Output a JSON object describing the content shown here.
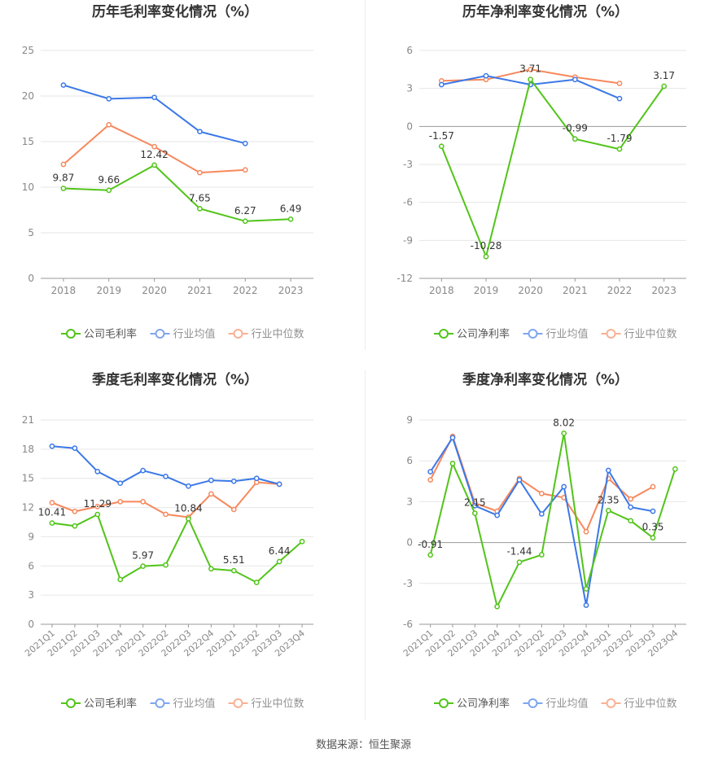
{
  "source_text": "数据来源：恒生聚源",
  "colors": {
    "company": "#52c41a",
    "industry_avg": "#3b78e7",
    "industry_median": "#f7885c",
    "grid": "#e6e6e6",
    "axis": "#999999"
  },
  "chart_data": [
    {
      "type": "line",
      "title": "历年毛利率变化情况（%）",
      "categories": [
        "2018",
        "2019",
        "2020",
        "2021",
        "2022",
        "2023"
      ],
      "ylim": [
        0,
        25
      ],
      "yticks": [
        0,
        5,
        10,
        15,
        20,
        25
      ],
      "grid": true,
      "legend": "bottom",
      "series": [
        {
          "name": "公司毛利率",
          "values": [
            9.87,
            9.66,
            12.42,
            7.65,
            6.27,
            6.49
          ],
          "labels": [
            "9.87",
            "9.66",
            "12.42",
            "7.65",
            "6.27",
            "6.49"
          ]
        },
        {
          "name": "行业均值",
          "values": [
            21.2,
            19.7,
            19.85,
            16.1,
            14.8,
            null
          ]
        },
        {
          "name": "行业中位数",
          "values": [
            12.5,
            16.85,
            14.45,
            11.6,
            11.9,
            null
          ]
        }
      ]
    },
    {
      "type": "line",
      "title": "历年净利率变化情况（%）",
      "categories": [
        "2018",
        "2019",
        "2020",
        "2021",
        "2022",
        "2023"
      ],
      "ylim": [
        -12,
        6
      ],
      "yticks": [
        -12,
        -9,
        -6,
        -3,
        0,
        3,
        6
      ],
      "grid": true,
      "legend": "bottom",
      "series": [
        {
          "name": "公司净利率",
          "values": [
            -1.57,
            -10.28,
            3.71,
            -0.99,
            -1.79,
            3.17
          ],
          "labels": [
            "-1.57",
            "-10.28",
            "3.71",
            "-0.99",
            "-1.79",
            "3.17"
          ]
        },
        {
          "name": "行业均值",
          "values": [
            3.3,
            4.0,
            3.3,
            3.7,
            2.2,
            null
          ]
        },
        {
          "name": "行业中位数",
          "values": [
            3.6,
            3.7,
            4.5,
            3.9,
            3.4,
            null
          ]
        }
      ]
    },
    {
      "type": "line",
      "title": "季度毛利率变化情况（%）",
      "categories": [
        "2021Q1",
        "2021Q2",
        "2021Q3",
        "2021Q4",
        "2022Q1",
        "2022Q2",
        "2022Q3",
        "2022Q4",
        "2023Q1",
        "2023Q2",
        "2023Q3",
        "2023Q4"
      ],
      "ylim": [
        0,
        21
      ],
      "yticks": [
        0,
        3,
        6,
        9,
        12,
        15,
        18,
        21
      ],
      "grid": true,
      "legend": "bottom",
      "series": [
        {
          "name": "公司毛利率",
          "values": [
            10.41,
            10.1,
            11.29,
            4.6,
            5.97,
            6.1,
            10.84,
            5.7,
            5.51,
            4.3,
            6.44,
            8.5
          ],
          "labels": [
            "10.41",
            "",
            "11.29",
            "",
            "5.97",
            "",
            "10.84",
            "",
            "5.51",
            "",
            "6.44",
            ""
          ]
        },
        {
          "name": "行业均值",
          "values": [
            18.3,
            18.1,
            15.7,
            14.5,
            15.8,
            15.2,
            14.2,
            14.8,
            14.7,
            15.0,
            14.4,
            null
          ]
        },
        {
          "name": "行业中位数",
          "values": [
            12.5,
            11.6,
            12.1,
            12.6,
            12.6,
            11.3,
            11.0,
            13.4,
            11.8,
            14.6,
            14.4,
            null
          ]
        }
      ]
    },
    {
      "type": "line",
      "title": "季度净利率变化情况（%）",
      "categories": [
        "2021Q1",
        "2021Q2",
        "2021Q3",
        "2021Q4",
        "2022Q1",
        "2022Q2",
        "2022Q3",
        "2022Q4",
        "2023Q1",
        "2023Q2",
        "2023Q3",
        "2023Q4"
      ],
      "ylim": [
        -6,
        9
      ],
      "yticks": [
        -6,
        -3,
        0,
        3,
        6,
        9
      ],
      "grid": true,
      "legend": "bottom",
      "series": [
        {
          "name": "公司净利率",
          "values": [
            -0.91,
            5.8,
            2.15,
            -4.7,
            -1.44,
            -0.9,
            8.02,
            -3.4,
            2.35,
            1.6,
            0.35,
            5.4
          ],
          "labels": [
            "-0.91",
            "",
            "2.15",
            "",
            "-1.44",
            "",
            "8.02",
            "",
            "2.35",
            "",
            "0.35",
            ""
          ]
        },
        {
          "name": "行业均值",
          "values": [
            5.2,
            7.7,
            2.7,
            2.0,
            4.6,
            2.1,
            4.1,
            -4.6,
            5.3,
            2.6,
            2.3,
            null
          ]
        },
        {
          "name": "行业中位数",
          "values": [
            4.6,
            7.8,
            2.9,
            2.3,
            4.7,
            3.6,
            3.3,
            0.8,
            4.7,
            3.2,
            4.1,
            null
          ]
        }
      ]
    }
  ]
}
